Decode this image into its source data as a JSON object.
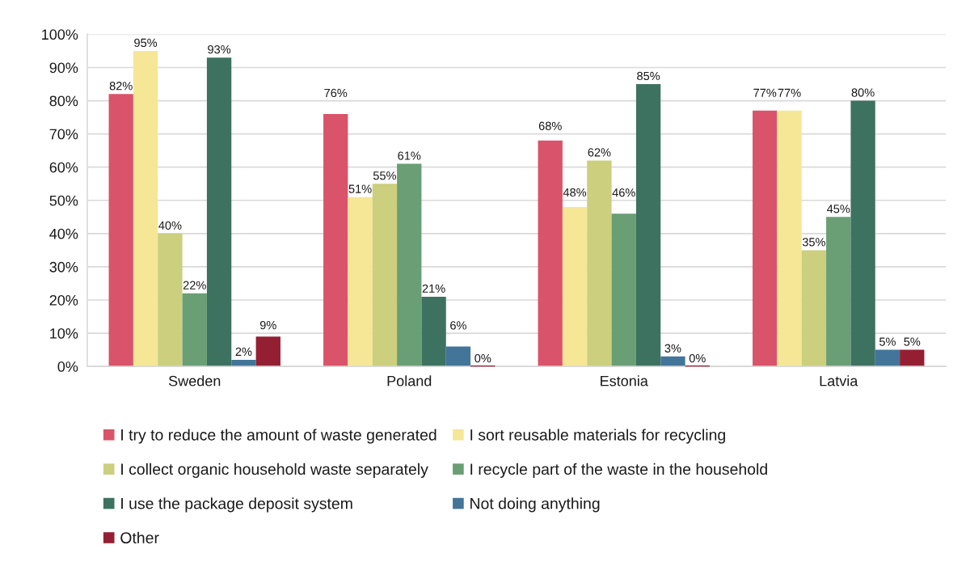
{
  "chart_data": {
    "type": "bar",
    "categories": [
      "Sweden",
      "Poland",
      "Estonia",
      "Latvia"
    ],
    "series": [
      {
        "name": "I try to reduce the amount of waste generated",
        "color": "#d9546a",
        "values": [
          82,
          76,
          68,
          77
        ],
        "value_labels": [
          "82%",
          "76%",
          "68%",
          "77%"
        ]
      },
      {
        "name": "I sort reusable materials for recycling",
        "color": "#f5e796",
        "values": [
          95,
          51,
          48,
          77
        ],
        "value_labels": [
          "95%",
          "51%",
          "48%",
          "77%"
        ]
      },
      {
        "name": "I collect organic household waste separately",
        "color": "#cbcf7e",
        "values": [
          40,
          55,
          62,
          35
        ],
        "value_labels": [
          "40%",
          "55%",
          "62%",
          "35%"
        ]
      },
      {
        "name": "I recycle part of the waste in the household",
        "color": "#6a9e74",
        "values": [
          22,
          61,
          46,
          45
        ],
        "value_labels": [
          "22%",
          "61%",
          "46%",
          "45%"
        ]
      },
      {
        "name": "I use the package deposit system",
        "color": "#3e7260",
        "values": [
          93,
          21,
          85,
          80
        ],
        "value_labels": [
          "93%",
          "21%",
          "85%",
          "80%"
        ]
      },
      {
        "name": "Not doing anything",
        "color": "#427599",
        "values": [
          2,
          6,
          3,
          5
        ],
        "value_labels": [
          "2%",
          "6%",
          "3%",
          "5%"
        ]
      },
      {
        "name": "Other",
        "color": "#941f33",
        "values": [
          9,
          0,
          0,
          5
        ],
        "value_labels": [
          "9%",
          "0%",
          "0%",
          "5%"
        ]
      }
    ],
    "ylim": [
      0,
      100
    ],
    "yticks": [
      {
        "value": 0,
        "label": "0%"
      },
      {
        "value": 10,
        "label": "10%"
      },
      {
        "value": 20,
        "label": "20%"
      },
      {
        "value": 30,
        "label": "30%"
      },
      {
        "value": 40,
        "label": "40%"
      },
      {
        "value": 50,
        "label": "50%"
      },
      {
        "value": 60,
        "label": "60%"
      },
      {
        "value": 70,
        "label": "70%"
      },
      {
        "value": 80,
        "label": "80%"
      },
      {
        "value": 90,
        "label": "90%"
      },
      {
        "value": 100,
        "label": "100%"
      }
    ],
    "grid": "y",
    "legend": "bottom"
  }
}
